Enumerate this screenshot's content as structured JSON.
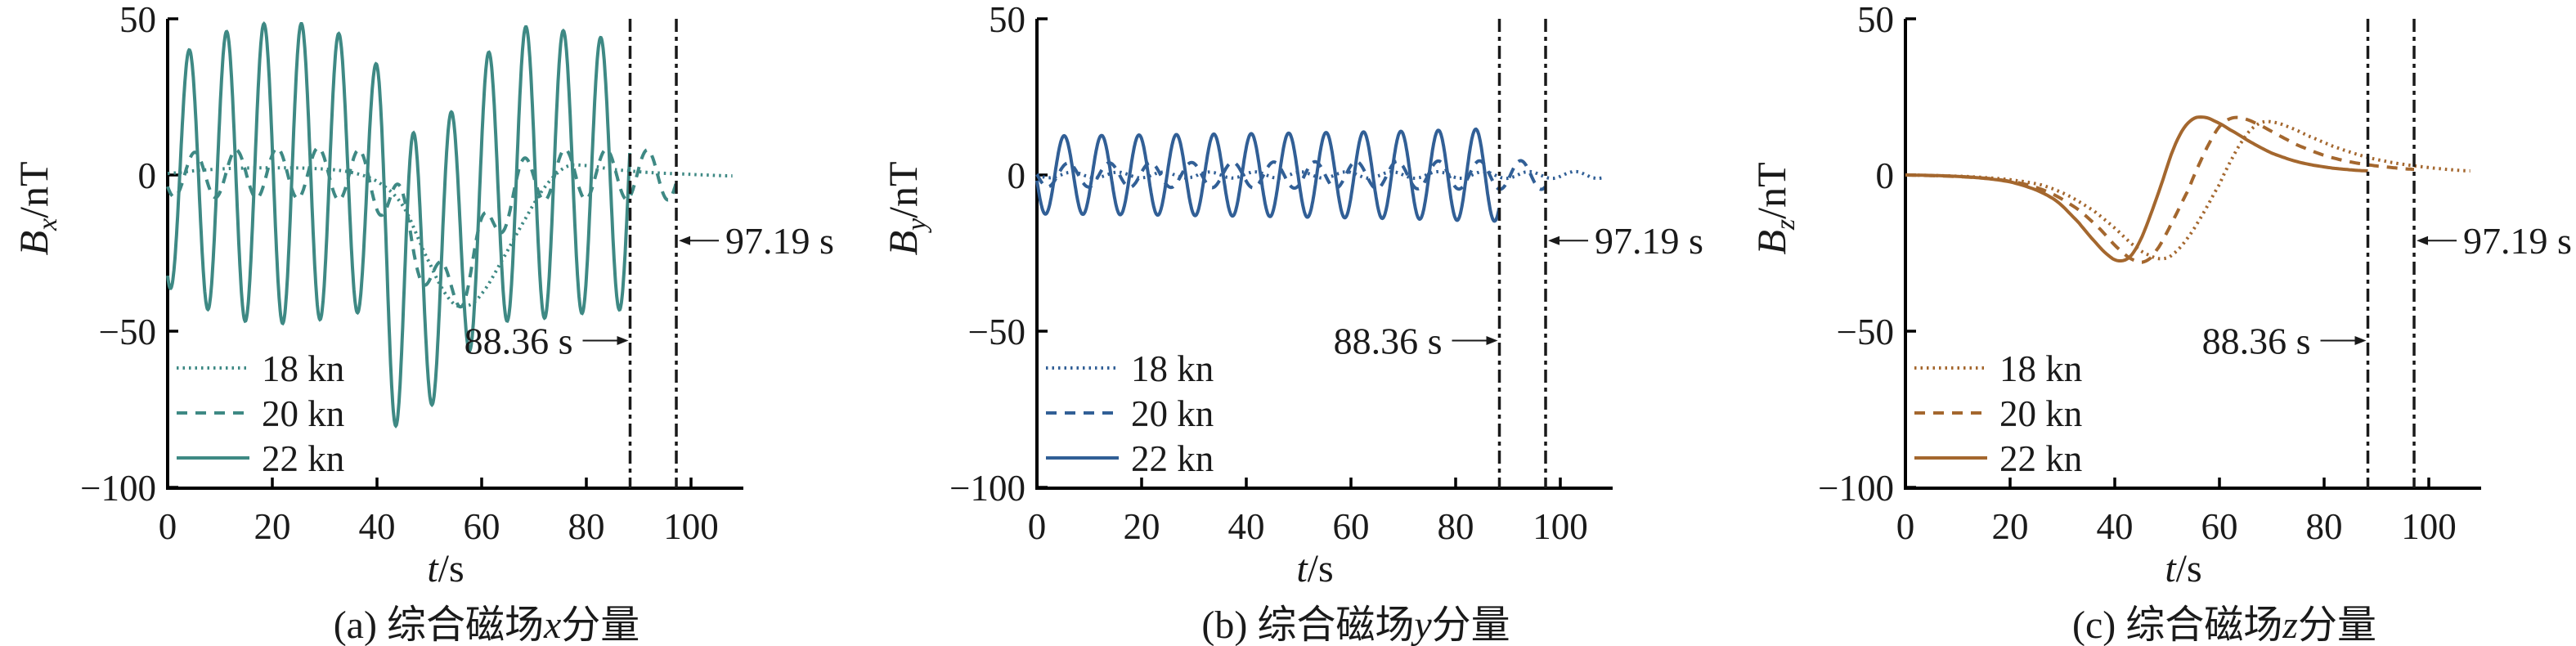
{
  "figure": {
    "background": "#ffffff",
    "text_color": "#1a1a1a",
    "marker_line_color": "#1a1a1a"
  },
  "chart_data": [
    {
      "type": "line",
      "id": "bx",
      "caption": {
        "prefix": "(a) 综合磁场",
        "var": "x",
        "suffix": "分量"
      },
      "ylabel": {
        "var": "B",
        "sub": "x",
        "unit": "/nT"
      },
      "xlabel": {
        "var": "t",
        "unit": "/s"
      },
      "color": "#3E8984",
      "xlim": [
        0,
        110
      ],
      "ylim": [
        -100,
        50
      ],
      "grid": false,
      "legend_position": "lower-left",
      "xticks": [
        {
          "v": 0,
          "label": "0"
        },
        {
          "v": 20,
          "label": "20"
        },
        {
          "v": 40,
          "label": "40"
        },
        {
          "v": 60,
          "label": "60"
        },
        {
          "v": 80,
          "label": "80"
        },
        {
          "v": 100,
          "label": "100"
        }
      ],
      "yticks": [
        {
          "v": 50,
          "label": "50"
        },
        {
          "v": 0,
          "label": "0"
        },
        {
          "v": -50,
          "label": "−50"
        },
        {
          "v": -100,
          "label": "−100"
        }
      ],
      "markers": [
        {
          "time": 88.36,
          "label": "88.36 s",
          "side": "left",
          "label_y": -53
        },
        {
          "time": 97.19,
          "label": "97.19 s",
          "side": "right",
          "label_y": -21
        }
      ],
      "series": [
        {
          "name": "18 kn",
          "style": "dotted",
          "kind": "spline",
          "end_time": 107.9,
          "points": [
            [
              0,
              0.5
            ],
            [
              6,
              1.5
            ],
            [
              14,
              2.2
            ],
            [
              26,
              2.2
            ],
            [
              34,
              1.2
            ],
            [
              40,
              -2
            ],
            [
              45,
              -10
            ],
            [
              50,
              -28
            ],
            [
              54,
              -40
            ],
            [
              57,
              -42
            ],
            [
              60,
              -38
            ],
            [
              64,
              -27
            ],
            [
              68,
              -15
            ],
            [
              72,
              -4
            ],
            [
              76,
              2.5
            ],
            [
              80,
              3
            ],
            [
              85,
              1.8
            ],
            [
              92,
              0.8
            ],
            [
              100,
              0.2
            ],
            [
              107.9,
              -0.3
            ]
          ]
        },
        {
          "name": "20 kn",
          "style": "dashed",
          "kind": "modulated_sine",
          "end_time": 97.19,
          "period": 7.86,
          "phase_peak": 5.2,
          "center": [
            [
              0,
              0
            ],
            [
              36,
              0
            ],
            [
              43,
              -8
            ],
            [
              48,
              -24
            ],
            [
              52,
              -36
            ],
            [
              56,
              -34
            ],
            [
              60,
              -22
            ],
            [
              64,
              -10
            ],
            [
              68,
              -3
            ],
            [
              72,
              0
            ],
            [
              97.19,
              0
            ]
          ],
          "amplitude": [
            [
              0,
              7
            ],
            [
              20,
              8
            ],
            [
              50,
              8.5
            ],
            [
              80,
              8
            ],
            [
              97.19,
              8
            ]
          ]
        },
        {
          "name": "22 kn",
          "style": "solid",
          "kind": "modulated_sine",
          "end_time": 88.36,
          "period": 7.15,
          "phase_peak": 4.1,
          "center": [
            [
              0,
              0
            ],
            [
              34,
              0
            ],
            [
              40,
              -8
            ],
            [
              45,
              -35
            ],
            [
              50,
              -30
            ],
            [
              55,
              -20
            ],
            [
              60,
              -8
            ],
            [
              65,
              0
            ],
            [
              88.36,
              0
            ]
          ],
          "amplitude": [
            [
              0,
              36
            ],
            [
              6,
              42
            ],
            [
              14,
              47
            ],
            [
              25,
              48
            ],
            [
              33,
              45
            ],
            [
              39,
              42
            ],
            [
              44,
              52
            ],
            [
              49,
              46
            ],
            [
              54,
              42
            ],
            [
              60,
              44
            ],
            [
              66,
              47
            ],
            [
              74,
              46
            ],
            [
              82,
              44
            ],
            [
              88.36,
              43
            ]
          ]
        }
      ]
    },
    {
      "type": "line",
      "id": "by",
      "caption": {
        "prefix": "(b) 综合磁场",
        "var": "y",
        "suffix": "分量"
      },
      "ylabel": {
        "var": "B",
        "sub": "y",
        "unit": "/nT"
      },
      "xlabel": {
        "var": "t",
        "unit": "/s"
      },
      "color": "#315F96",
      "xlim": [
        0,
        110
      ],
      "ylim": [
        -100,
        50
      ],
      "grid": false,
      "legend_position": "lower-left",
      "xticks": [
        {
          "v": 0,
          "label": "0"
        },
        {
          "v": 20,
          "label": "20"
        },
        {
          "v": 40,
          "label": "40"
        },
        {
          "v": 60,
          "label": "60"
        },
        {
          "v": 80,
          "label": "80"
        },
        {
          "v": 100,
          "label": "100"
        }
      ],
      "yticks": [
        {
          "v": 50,
          "label": "50"
        },
        {
          "v": 0,
          "label": "0"
        },
        {
          "v": -50,
          "label": "−50"
        },
        {
          "v": -100,
          "label": "−100"
        }
      ],
      "markers": [
        {
          "time": 88.36,
          "label": "88.36 s",
          "side": "left",
          "label_y": -53
        },
        {
          "time": 97.19,
          "label": "97.19 s",
          "side": "right",
          "label_y": -21
        }
      ],
      "series": [
        {
          "name": "18 kn",
          "style": "dotted",
          "kind": "modulated_sine",
          "end_time": 107.9,
          "period": 8.73,
          "phase_peak": -2.0,
          "center": [
            [
              0,
              0
            ],
            [
              107.9,
              0
            ]
          ],
          "amplitude": [
            [
              0,
              0.9
            ],
            [
              107.9,
              1.1
            ]
          ]
        },
        {
          "name": "20 kn",
          "style": "dashed",
          "kind": "modulated_sine",
          "end_time": 97.19,
          "period": 7.86,
          "phase_peak": -1.9,
          "center": [
            [
              0,
              0
            ],
            [
              97.19,
              0
            ]
          ],
          "amplitude": [
            [
              0,
              3.8
            ],
            [
              97.19,
              4.6
            ]
          ]
        },
        {
          "name": "22 kn",
          "style": "solid",
          "kind": "modulated_sine",
          "end_time": 88.36,
          "period": 7.15,
          "phase_peak": -1.95,
          "center": [
            [
              0,
              0
            ],
            [
              88.36,
              0
            ]
          ],
          "amplitude": [
            [
              0,
              12.5
            ],
            [
              40,
              13.2
            ],
            [
              70,
              14
            ],
            [
              88.36,
              14.8
            ]
          ]
        }
      ]
    },
    {
      "type": "line",
      "id": "bz",
      "caption": {
        "prefix": "(c) 综合磁场",
        "var": "z",
        "suffix": "分量"
      },
      "ylabel": {
        "var": "B",
        "sub": "z",
        "unit": "/nT"
      },
      "xlabel": {
        "var": "t",
        "unit": "/s"
      },
      "color": "#A4672E",
      "xlim": [
        0,
        110
      ],
      "ylim": [
        -100,
        50
      ],
      "grid": false,
      "legend_position": "lower-left",
      "xticks": [
        {
          "v": 0,
          "label": "0"
        },
        {
          "v": 20,
          "label": "20"
        },
        {
          "v": 40,
          "label": "40"
        },
        {
          "v": 60,
          "label": "60"
        },
        {
          "v": 80,
          "label": "80"
        },
        {
          "v": 100,
          "label": "100"
        }
      ],
      "yticks": [
        {
          "v": 50,
          "label": "50"
        },
        {
          "v": 0,
          "label": "0"
        },
        {
          "v": -50,
          "label": "−50"
        },
        {
          "v": -100,
          "label": "−100"
        }
      ],
      "markers": [
        {
          "time": 88.36,
          "label": "88.36 s",
          "side": "left",
          "label_y": -53
        },
        {
          "time": 97.19,
          "label": "97.19 s",
          "side": "right",
          "label_y": -21
        }
      ],
      "series": [
        {
          "name": "18 kn",
          "style": "dotted",
          "kind": "spline",
          "end_time": 107.9,
          "points": [
            [
              0,
              0
            ],
            [
              12,
              -0.5
            ],
            [
              20,
              -1.5
            ],
            [
              26,
              -3.2
            ],
            [
              31,
              -6.5
            ],
            [
              36,
              -11.5
            ],
            [
              40,
              -17
            ],
            [
              44,
              -23
            ],
            [
              47,
              -26
            ],
            [
              49,
              -26.8
            ],
            [
              51,
              -25.5
            ],
            [
              54,
              -20
            ],
            [
              57,
              -12
            ],
            [
              60,
              -3
            ],
            [
              62,
              4
            ],
            [
              64,
              10
            ],
            [
              66,
              14.5
            ],
            [
              68,
              16.8
            ],
            [
              70,
              17
            ],
            [
              73,
              15.5
            ],
            [
              77,
              12.5
            ],
            [
              82,
              9
            ],
            [
              88,
              5.8
            ],
            [
              94,
              3.7
            ],
            [
              101,
              2.2
            ],
            [
              107.9,
              1.3
            ]
          ]
        },
        {
          "name": "20 kn",
          "style": "dashed",
          "kind": "spline",
          "end_time": 97.19,
          "points": [
            [
              0,
              0
            ],
            [
              10,
              -0.5
            ],
            [
              17,
              -1.3
            ],
            [
              23,
              -3
            ],
            [
              28,
              -6
            ],
            [
              33,
              -11
            ],
            [
              37,
              -17
            ],
            [
              41,
              -24
            ],
            [
              44,
              -27.5
            ],
            [
              46,
              -27.5
            ],
            [
              48,
              -24
            ],
            [
              51,
              -15
            ],
            [
              54,
              -5
            ],
            [
              56,
              3
            ],
            [
              58,
              10
            ],
            [
              60,
              15.5
            ],
            [
              62,
              18
            ],
            [
              64,
              18.3
            ],
            [
              67,
              16.5
            ],
            [
              71,
              13
            ],
            [
              75,
              9.5
            ],
            [
              80,
              6.3
            ],
            [
              85,
              4.2
            ],
            [
              90,
              2.9
            ],
            [
              97.19,
              1.8
            ]
          ]
        },
        {
          "name": "22 kn",
          "style": "solid",
          "kind": "spline",
          "end_time": 88.36,
          "points": [
            [
              0,
              0
            ],
            [
              8,
              -0.3
            ],
            [
              14,
              -0.9
            ],
            [
              20,
              -2.2
            ],
            [
              25,
              -4.8
            ],
            [
              29,
              -8.5
            ],
            [
              33,
              -15
            ],
            [
              36,
              -21
            ],
            [
              39,
              -26
            ],
            [
              41,
              -27.5
            ],
            [
              43,
              -26
            ],
            [
              45,
              -20.5
            ],
            [
              47,
              -12
            ],
            [
              49,
              -2.5
            ],
            [
              51,
              7.5
            ],
            [
              53,
              14.5
            ],
            [
              55,
              18
            ],
            [
              57,
              18.5
            ],
            [
              59,
              17.3
            ],
            [
              62,
              14.5
            ],
            [
              66,
              10.5
            ],
            [
              70,
              7
            ],
            [
              75,
              4.2
            ],
            [
              80,
              2.6
            ],
            [
              84,
              1.8
            ],
            [
              88.36,
              1.3
            ]
          ]
        }
      ]
    }
  ]
}
